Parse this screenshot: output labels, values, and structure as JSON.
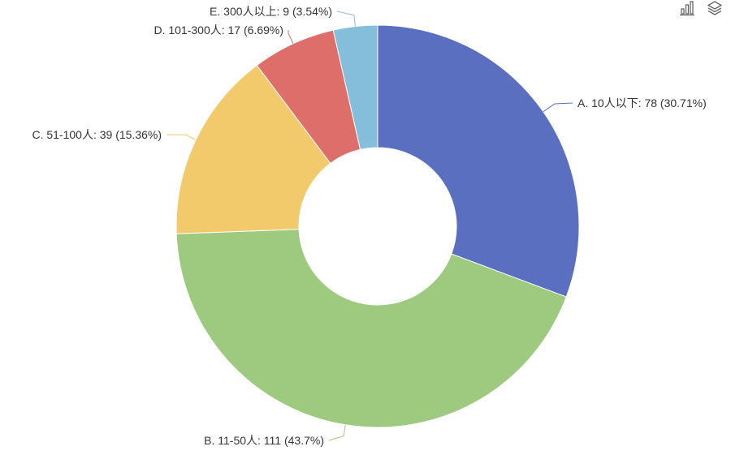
{
  "toolbar": {
    "bar_icon": "bar-chart-icon",
    "layers_icon": "layers-icon",
    "icon_color": "#666666"
  },
  "chart_data": {
    "type": "pie",
    "style": "donut",
    "start_angle_deg": 90,
    "direction": "clockwise",
    "slices": [
      {
        "label": "A. 10人以下: 78 (30.71%)",
        "name": "A. 10人以下",
        "value": 78,
        "percent": 30.71,
        "color": "#5a6fc0"
      },
      {
        "label": "B. 11-50人: 111 (43.7%)",
        "name": "B. 11-50人",
        "value": 111,
        "percent": 43.7,
        "color": "#9eca7f"
      },
      {
        "label": "C. 51-100人: 39 (15.36%)",
        "name": "C. 51-100人",
        "value": 39,
        "percent": 15.36,
        "color": "#f2ca6b"
      },
      {
        "label": "D. 101-300人: 17 (6.69%)",
        "name": "D. 101-300人",
        "value": 17,
        "percent": 6.69,
        "color": "#de6e6a"
      },
      {
        "label": "E. 300人以上: 9 (3.54%)",
        "name": "E. 300人以上",
        "value": 9,
        "percent": 3.54,
        "color": "#85bedb"
      }
    ]
  }
}
